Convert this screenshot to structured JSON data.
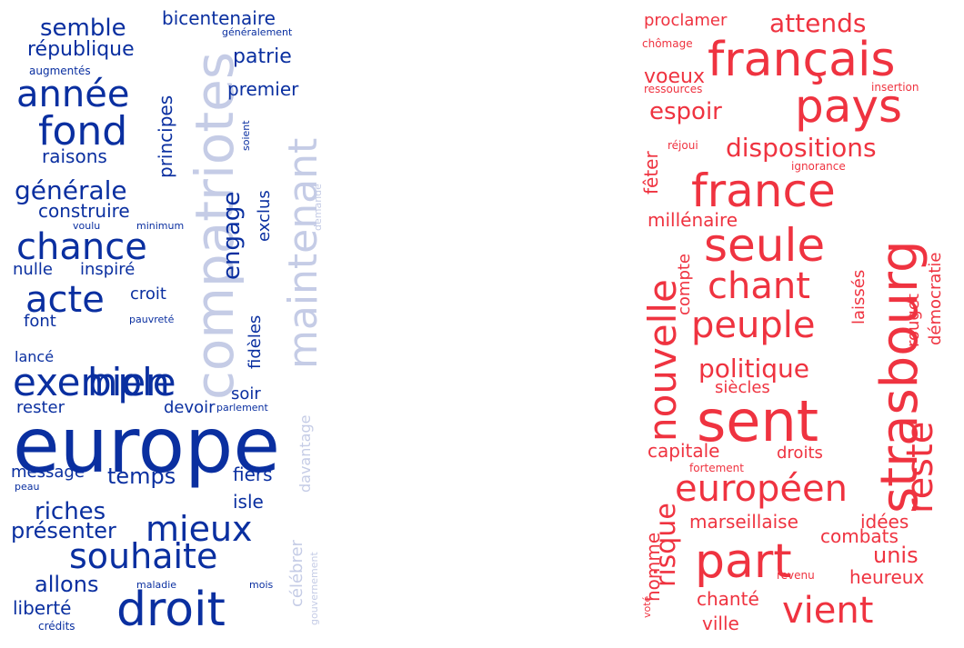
{
  "palette": {
    "blue_dark": "#0a2fa0",
    "blue_light": "#c5cce6",
    "red": "#ef3340"
  },
  "left_cloud": {
    "words": [
      "europe",
      "droit",
      "souhaite",
      "mieux",
      "compatriotes",
      "maintenant",
      "exemple",
      "bien",
      "acte",
      "chance",
      "fond",
      "année",
      "générale",
      "semble",
      "république",
      "bicentenaire",
      "patrie",
      "premier",
      "principes",
      "engage",
      "exclus",
      "raisons",
      "construire",
      "nulle",
      "inspiré",
      "croit",
      "font",
      "pauvreté",
      "lancé",
      "fidèles",
      "soir",
      "rester",
      "devoir",
      "parlement",
      "message",
      "peau",
      "temps",
      "fiers",
      "riches",
      "isle",
      "présenter",
      "allons",
      "maladie",
      "mois",
      "liberté",
      "crédits",
      "célébrer",
      "davantage",
      "gouvernement",
      "généralement",
      "augmentés",
      "soient",
      "voulu",
      "minimum",
      "demande"
    ]
  },
  "right_cloud": {
    "words": [
      "proclamer",
      "chômage",
      "attends",
      "français",
      "voeux",
      "ressources",
      "insertion",
      "pays",
      "espoir",
      "fêter",
      "réjoui",
      "dispositions",
      "ignorance",
      "france",
      "strasbourg",
      "millénaire",
      "seule",
      "nouvelle",
      "compte",
      "laissés",
      "démocratie",
      "rouget",
      "chant",
      "peuple",
      "politique",
      "siècles",
      "sent",
      "reste",
      "capitale",
      "droits",
      "fortement",
      "européen",
      "risque",
      "marseillaise",
      "idées",
      "combats",
      "part",
      "unis",
      "homme",
      "heureux",
      "revenu",
      "voté",
      "chanté",
      "vient",
      "ville"
    ]
  }
}
